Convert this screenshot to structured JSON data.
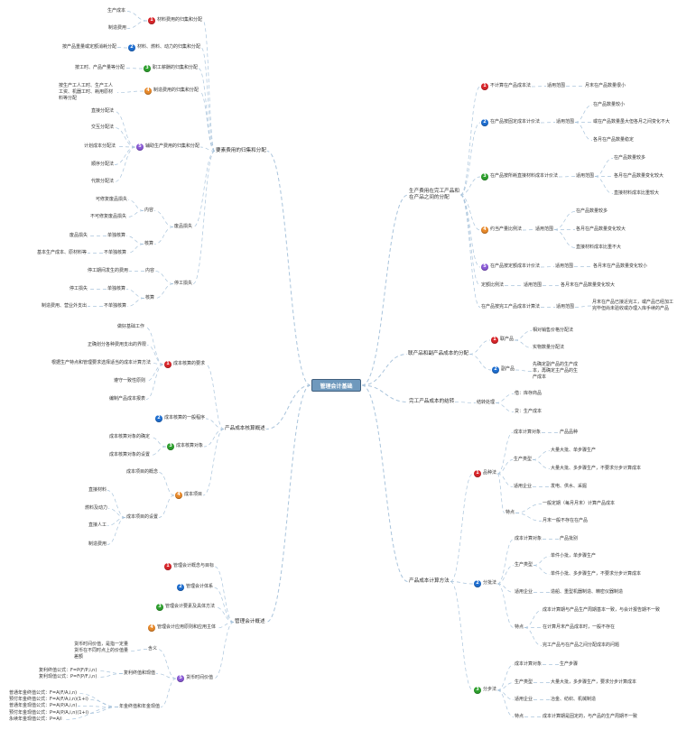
{
  "center": "管理会计基础",
  "badge_colors": {
    "1": "#d9262b",
    "2": "#1f6fd1",
    "3": "#2ea12e",
    "4": "#e8892a",
    "5": "#8a5ad6"
  },
  "line_color": "#a9c4dc",
  "branches": [
    {
      "label": "要素费用的归集和分配",
      "children": [
        {
          "num": "1",
          "label": "材料费用的归集和分配",
          "children": [
            {
              "label": "生产成本"
            },
            {
              "label": "制造费用"
            }
          ]
        },
        {
          "num": "2",
          "label": "材料、燃料、动力的归集和分配",
          "children": [
            {
              "label": "按产品重量或定额消耗分配"
            }
          ]
        },
        {
          "num": "3",
          "label": "职工薪酬的归集和分配",
          "children": [
            {
              "label": "按工时、产品产量等分配"
            }
          ]
        },
        {
          "num": "4",
          "label": "制造费用的归集和分配",
          "children": [
            {
              "label": "按生产工人工时、生产工人工资、机器工时、耗用原材料等分配"
            }
          ]
        },
        {
          "num": "5",
          "label": "辅助生产费用的归集和分配",
          "children": [
            {
              "label": "直接分配法"
            },
            {
              "label": "交互分配法"
            },
            {
              "label": "计划成本分配法"
            },
            {
              "label": "顺序分配法"
            },
            {
              "label": "代数分配法"
            }
          ]
        },
        {
          "label": "废品损失",
          "children": [
            {
              "label": "内容",
              "children": [
                {
                  "label": "可修复废品损失"
                },
                {
                  "label": "不可修复废品损失"
                }
              ]
            },
            {
              "label": "核算",
              "children": [
                {
                  "label": "单独核算",
                  "children": [
                    {
                      "label": "废品损失"
                    }
                  ]
                },
                {
                  "label": "不单独核算",
                  "children": [
                    {
                      "label": "基本生产成本、原材料等"
                    }
                  ]
                }
              ]
            }
          ]
        },
        {
          "label": "停工损失",
          "children": [
            {
              "label": "内容",
              "children": [
                {
                  "label": "停工期间发生的费用"
                }
              ]
            },
            {
              "label": "核算",
              "children": [
                {
                  "label": "单独核算",
                  "children": [
                    {
                      "label": "停工损失"
                    }
                  ]
                },
                {
                  "label": "不单独核算",
                  "children": [
                    {
                      "label": "制造费用、营业外支出"
                    }
                  ]
                }
              ]
            }
          ]
        }
      ]
    },
    {
      "label": "产品成本核算概述",
      "children": [
        {
          "num": "1",
          "label": "成本核算的要求",
          "children": [
            {
              "label": "做好基础工作"
            },
            {
              "label": "正确划分各种费用支出的界限"
            },
            {
              "label": "根据生产特点和管理要求选择适当的成本计算方法"
            },
            {
              "label": "遵守一致性原则"
            },
            {
              "label": "编制产品成本报表"
            }
          ]
        },
        {
          "num": "2",
          "label": "成本核算的一般程序"
        },
        {
          "num": "3",
          "label": "成本核算对象",
          "children": [
            {
              "label": "成本核算对象的确定"
            },
            {
              "label": "成本核算对象的设置"
            }
          ]
        },
        {
          "num": "4",
          "label": "成本项目",
          "children": [
            {
              "label": "成本项目的概念"
            },
            {
              "label": "成本项目的设置",
              "children": [
                {
                  "label": "直接材料"
                },
                {
                  "label": "燃料及动力"
                },
                {
                  "label": "直接人工"
                },
                {
                  "label": "制造费用"
                }
              ]
            }
          ]
        }
      ]
    },
    {
      "label": "管理会计概述",
      "children": [
        {
          "num": "1",
          "label": "管理会计概念与目标"
        },
        {
          "num": "2",
          "label": "管理会计体系"
        },
        {
          "num": "3",
          "label": "管理会计要素及具体方法"
        },
        {
          "num": "4",
          "label": "管理会计应用原则和应用主体"
        },
        {
          "num": "5",
          "label": "货币时间价值",
          "children": [
            {
              "label": "含义",
              "children": [
                {
                  "label": "货币时间价值，是指一定量货币在不同时点上的价值量差额"
                }
              ]
            },
            {
              "label": "复利终值和现值",
              "children": [
                {
                  "label": "复利终值公式：F=P(F/P,i,n)"
                },
                {
                  "label": "复利现值公式：P=F(P/F,i,n)"
                }
              ]
            },
            {
              "label": "年金终值和年金现值",
              "children": [
                {
                  "label": "普通年金终值公式：F=A(F/A,i,n)"
                },
                {
                  "label": "预付年金终值公式：F=A(F/A,i,n)(1+i)"
                },
                {
                  "label": "普通年金现值公式：P=A(P/A,i,n)"
                },
                {
                  "label": "预付年金现值公式：P=A(P/A,i,n)(1+i)"
                },
                {
                  "label": "永续年金现值公式：P=A/i"
                }
              ]
            }
          ]
        }
      ]
    },
    {
      "label": "生产费用在完工产品和在产品之间的分配",
      "children": [
        {
          "num": "1",
          "label": "不计算在产品成本法",
          "children": [
            {
              "label": "适用范围",
              "children": [
                {
                  "label": "月末在产品数量很小"
                }
              ]
            }
          ]
        },
        {
          "num": "2",
          "label": "在产品按固定成本计价法",
          "children": [
            {
              "label": "适用范围",
              "children": [
                {
                  "label": "在产品数量较小"
                },
                {
                  "label": "或在产品数量虽大但各月之间变化不大"
                },
                {
                  "label": "各月在产品数量稳定"
                }
              ]
            }
          ]
        },
        {
          "num": "3",
          "label": "在产品按所耗直接材料成本计价法",
          "children": [
            {
              "label": "适用范围",
              "children": [
                {
                  "label": "在产品数量较多"
                },
                {
                  "label": "各月在产品数量变化较大"
                },
                {
                  "label": "直接材料成本比重较大"
                }
              ]
            }
          ]
        },
        {
          "num": "4",
          "label": "约当产量比例法",
          "children": [
            {
              "label": "适用范围",
              "children": [
                {
                  "label": "在产品数量较多"
                },
                {
                  "label": "各月在产品数量变化较大"
                },
                {
                  "label": "直接材料成本比重不大"
                }
              ]
            }
          ]
        },
        {
          "num": "5",
          "label": "在产品按定额成本计价法",
          "children": [
            {
              "label": "适用范围",
              "children": [
                {
                  "label": "各月末在产品数量变化较小"
                }
              ]
            }
          ]
        },
        {
          "label": "定额比例法",
          "children": [
            {
              "label": "适用范围",
              "children": [
                {
                  "label": "各月末在产品数量变化较大"
                }
              ]
            }
          ]
        },
        {
          "label": "在产品按完工产品成本计算法",
          "children": [
            {
              "label": "适用范围",
              "children": [
                {
                  "label": "月末在产品已接近完工，或产品已经加工完毕但尚未验收或办理入库手续的产品"
                }
              ]
            }
          ]
        }
      ]
    },
    {
      "label": "联产品和副产品成本的分配",
      "children": [
        {
          "num": "1",
          "label": "联产品",
          "children": [
            {
              "label": "相对销售价格分配法"
            },
            {
              "label": "实物数量分配法"
            }
          ]
        },
        {
          "num": "2",
          "label": "副产品",
          "children": [
            {
              "label": "先确定副产品的生产成本，再确定主产品的生产成本"
            }
          ]
        }
      ]
    },
    {
      "label": "完工产品成本的结转",
      "children": [
        {
          "label": "结转处理",
          "children": [
            {
              "label": "借：库存商品"
            },
            {
              "label": "贷：生产成本"
            }
          ]
        }
      ]
    },
    {
      "label": "产品成本计算方法",
      "children": [
        {
          "num": "1",
          "label": "品种法",
          "children": [
            {
              "label": "成本计算对象",
              "children": [
                {
                  "label": "产品品种"
                }
              ]
            },
            {
              "label": "生产类型",
              "children": [
                {
                  "label": "大量大批、单步骤生产"
                },
                {
                  "label": "大量大批、多步骤生产，不要求分步计算成本"
                }
              ]
            },
            {
              "label": "适用企业",
              "children": [
                {
                  "label": "发电、供水、采掘"
                }
              ]
            },
            {
              "label": "特点",
              "children": [
                {
                  "label": "一般定期（每月月末）计算产品成本"
                },
                {
                  "label": "月末一般不存在在产品"
                }
              ]
            }
          ]
        },
        {
          "num": "2",
          "label": "分批法",
          "children": [
            {
              "label": "成本计算对象",
              "children": [
                {
                  "label": "产品批别"
                }
              ]
            },
            {
              "label": "生产类型",
              "children": [
                {
                  "label": "单件小批，单步骤生产"
                },
                {
                  "label": "单件小批、多步骤生产，不要求分步计算成本"
                }
              ]
            },
            {
              "label": "适用企业",
              "children": [
                {
                  "label": "造船、重型机器制造、精密仪器制造"
                }
              ]
            },
            {
              "label": "特点",
              "children": [
                {
                  "label": "成本计算期与产品生产周期基本一致，与会计报告期不一致"
                },
                {
                  "label": "在计算月末产品成本时，一般不存在"
                },
                {
                  "label": "完工产品与在产品之间分配成本的问题"
                }
              ]
            }
          ]
        },
        {
          "num": "3",
          "label": "分步法",
          "children": [
            {
              "label": "成本计算对象",
              "children": [
                {
                  "label": "生产步骤"
                }
              ]
            },
            {
              "label": "生产类型",
              "children": [
                {
                  "label": "大量大批，多步骤生产，要求分步计算成本"
                }
              ]
            },
            {
              "label": "适用企业",
              "children": [
                {
                  "label": "冶金、纺织、机械制造"
                }
              ]
            },
            {
              "label": "特点",
              "children": [
                {
                  "label": "成本计算期是固定的，与产品的生产周期不一致"
                }
              ]
            }
          ]
        }
      ]
    }
  ]
}
